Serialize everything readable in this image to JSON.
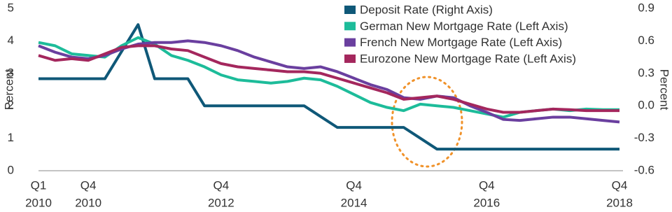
{
  "chart_data": {
    "type": "line",
    "y_label": "Percent",
    "y2_label": "Percent",
    "categories": [
      "Q1",
      null,
      null,
      "Q4",
      null,
      null,
      null,
      null,
      null,
      null,
      null,
      "Q4",
      null,
      null,
      null,
      null,
      null,
      null,
      null,
      "Q4",
      null,
      null,
      null,
      null,
      null,
      null,
      null,
      "Q4",
      null,
      null,
      null,
      null,
      null,
      null,
      null,
      "Q4"
    ],
    "category_years": [
      "2010",
      null,
      null,
      "2010",
      null,
      null,
      null,
      null,
      null,
      null,
      null,
      "2012",
      null,
      null,
      null,
      null,
      null,
      null,
      null,
      "2014",
      null,
      null,
      null,
      null,
      null,
      null,
      null,
      "2016",
      null,
      null,
      null,
      null,
      null,
      null,
      null,
      "2018"
    ],
    "ylim": [
      0,
      5
    ],
    "yticks": [
      0,
      1,
      2,
      3,
      4,
      5
    ],
    "y2lim": [
      -0.6,
      0.9
    ],
    "y2ticks": [
      -0.6,
      -0.3,
      {
        "value": 0,
        "label": "0.0"
      },
      0.3,
      0.6,
      0.9
    ],
    "legend": "top-right",
    "series": [
      {
        "name": "Deposit Rate (Right Axis)",
        "color": "#0f5878",
        "axis": "y2",
        "values": [
          0.25,
          0.25,
          0.25,
          0.25,
          0.25,
          0.5,
          0.75,
          0.25,
          0.25,
          0.25,
          0,
          0,
          0,
          0,
          0,
          0,
          0,
          -0.1,
          -0.2,
          -0.2,
          -0.2,
          -0.2,
          -0.2,
          -0.3,
          -0.4,
          -0.4,
          -0.4,
          -0.4,
          -0.4,
          -0.4,
          -0.4,
          -0.4,
          -0.4,
          -0.4,
          -0.4,
          -0.4
        ]
      },
      {
        "name": "German New Mortgage Rate (Left Axis)",
        "color": "#1dbc9a",
        "values": [
          3.95,
          3.85,
          3.6,
          3.55,
          3.5,
          3.85,
          4.1,
          3.9,
          3.55,
          3.4,
          3.2,
          2.95,
          2.8,
          2.75,
          2.7,
          2.75,
          2.85,
          2.8,
          2.6,
          2.35,
          2.1,
          1.95,
          1.85,
          2.05,
          2.0,
          1.95,
          1.85,
          1.75,
          1.65,
          1.8,
          1.85,
          1.9,
          1.85,
          1.9,
          1.88,
          1.88
        ]
      },
      {
        "name": "French New Mortgage Rate (Left Axis)",
        "color": "#6a3f9f",
        "values": [
          3.85,
          3.65,
          3.5,
          3.45,
          3.55,
          3.75,
          3.9,
          3.95,
          3.95,
          4.0,
          3.95,
          3.85,
          3.7,
          3.5,
          3.35,
          3.2,
          3.15,
          3.2,
          3.05,
          2.85,
          2.65,
          2.5,
          2.25,
          2.2,
          2.3,
          2.25,
          2.0,
          1.8,
          1.58,
          1.55,
          1.6,
          1.65,
          1.65,
          1.6,
          1.55,
          1.5
        ]
      },
      {
        "name": "Eurozone New Mortgage Rate (Left Axis)",
        "color": "#a4275d",
        "values": [
          3.55,
          3.4,
          3.45,
          3.4,
          3.6,
          3.8,
          3.85,
          3.85,
          3.75,
          3.7,
          3.5,
          3.3,
          3.2,
          3.15,
          3.1,
          3.05,
          3.05,
          3.0,
          2.85,
          2.7,
          2.55,
          2.4,
          2.2,
          2.25,
          2.3,
          2.2,
          2.05,
          1.9,
          1.8,
          1.8,
          1.85,
          1.9,
          1.88,
          1.85,
          1.85,
          1.85
        ]
      }
    ]
  }
}
